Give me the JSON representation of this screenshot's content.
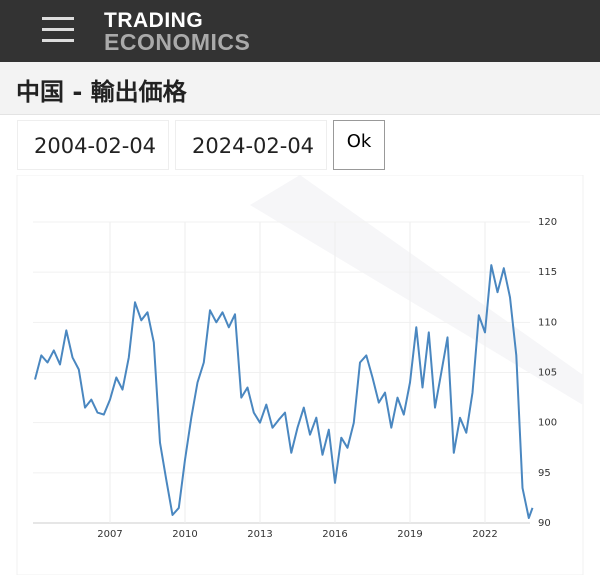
{
  "header": {
    "logo_line1": "TRADING",
    "logo_line2": "ECONOMICS"
  },
  "page_title": "中国 - 輸出価格",
  "date_from": "2004-02-04",
  "date_to": "2024-02-04",
  "button": "Ok",
  "chart_data": {
    "type": "line",
    "color": "#4a87c0",
    "x": [
      2004.0,
      2004.25,
      2004.5,
      2004.75,
      2005.0,
      2005.25,
      2005.5,
      2005.75,
      2006.0,
      2006.25,
      2006.5,
      2006.75,
      2007.0,
      2007.25,
      2007.5,
      2007.75,
      2008.0,
      2008.25,
      2008.5,
      2008.75,
      2009.0,
      2009.25,
      2009.5,
      2009.75,
      2010.0,
      2010.25,
      2010.5,
      2010.75,
      2011.0,
      2011.25,
      2011.5,
      2011.75,
      2012.0,
      2012.25,
      2012.5,
      2012.75,
      2013.0,
      2013.25,
      2013.5,
      2013.75,
      2014.0,
      2014.25,
      2014.5,
      2014.75,
      2015.0,
      2015.25,
      2015.5,
      2015.75,
      2016.0,
      2016.25,
      2016.5,
      2016.75,
      2017.0,
      2017.25,
      2017.5,
      2017.75,
      2018.0,
      2018.25,
      2018.5,
      2018.75,
      2019.0,
      2019.25,
      2019.5,
      2019.75,
      2020.0,
      2020.25,
      2020.5,
      2020.75,
      2021.0,
      2021.25,
      2021.5,
      2021.75,
      2022.0,
      2022.25,
      2022.5,
      2022.75,
      2023.0,
      2023.25,
      2023.5,
      2023.75,
      2023.9
    ],
    "values": [
      104.3,
      106.7,
      106.0,
      107.2,
      105.8,
      109.2,
      106.5,
      105.3,
      101.5,
      102.3,
      101.0,
      100.8,
      102.3,
      104.5,
      103.3,
      106.5,
      112.0,
      110.2,
      111.0,
      108.0,
      98.0,
      94.3,
      90.8,
      91.5,
      96.3,
      100.5,
      104.0,
      106.0,
      111.2,
      110.0,
      111.0,
      109.5,
      110.8,
      102.5,
      103.5,
      101.0,
      100.0,
      101.8,
      99.5,
      100.3,
      101.0,
      97.0,
      99.5,
      101.5,
      98.8,
      100.5,
      96.8,
      99.3,
      94.0,
      98.5,
      97.5,
      100.0,
      106.0,
      106.7,
      104.5,
      102.0,
      103.0,
      99.5,
      102.5,
      100.8,
      104.0,
      109.5,
      103.5,
      109.0,
      101.5,
      105.0,
      108.5,
      97.0,
      100.5,
      99.0,
      103.0,
      110.7,
      109.0,
      115.7,
      113.0,
      115.4,
      112.5,
      106.7,
      93.5,
      90.5,
      91.5
    ],
    "xlim": [
      2004,
      2024
    ],
    "xticks": [
      2007,
      2010,
      2013,
      2016,
      2019,
      2022
    ],
    "ylim": [
      90,
      120
    ],
    "yticks": [
      90,
      95,
      100,
      105,
      110,
      115,
      120
    ],
    "grid": true
  }
}
